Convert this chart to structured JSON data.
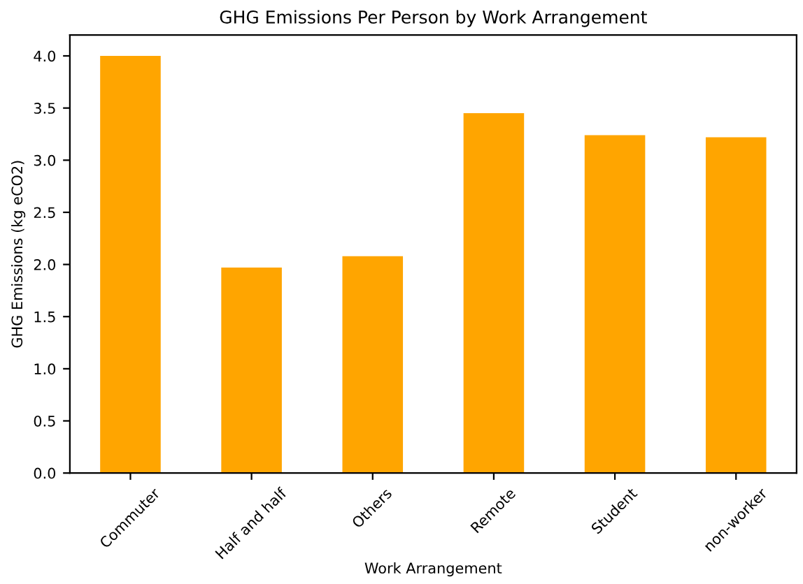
{
  "chart_data": {
    "type": "bar",
    "title": "GHG Emissions Per Person by Work Arrangement",
    "xlabel": "Work Arrangement",
    "ylabel": "GHG Emissions (kg eCO2)",
    "categories": [
      "Commuter",
      "Half and half",
      "Others",
      "Remote",
      "Student",
      "non-worker"
    ],
    "values": [
      4.0,
      1.97,
      2.08,
      3.45,
      3.24,
      3.22
    ],
    "color": "#ffa500",
    "ylim": [
      0,
      4.2
    ],
    "yticks": [
      {
        "value": 0,
        "label": "0.0"
      },
      {
        "value": 0.5,
        "label": "0.5"
      },
      {
        "value": 1,
        "label": "1.0"
      },
      {
        "value": 1.5,
        "label": "1.5"
      },
      {
        "value": 2,
        "label": "2.0"
      },
      {
        "value": 2.5,
        "label": "2.5"
      },
      {
        "value": 3,
        "label": "3.0"
      },
      {
        "value": 3.5,
        "label": "3.5"
      },
      {
        "value": 4,
        "label": "4.0"
      }
    ],
    "grid": false
  }
}
